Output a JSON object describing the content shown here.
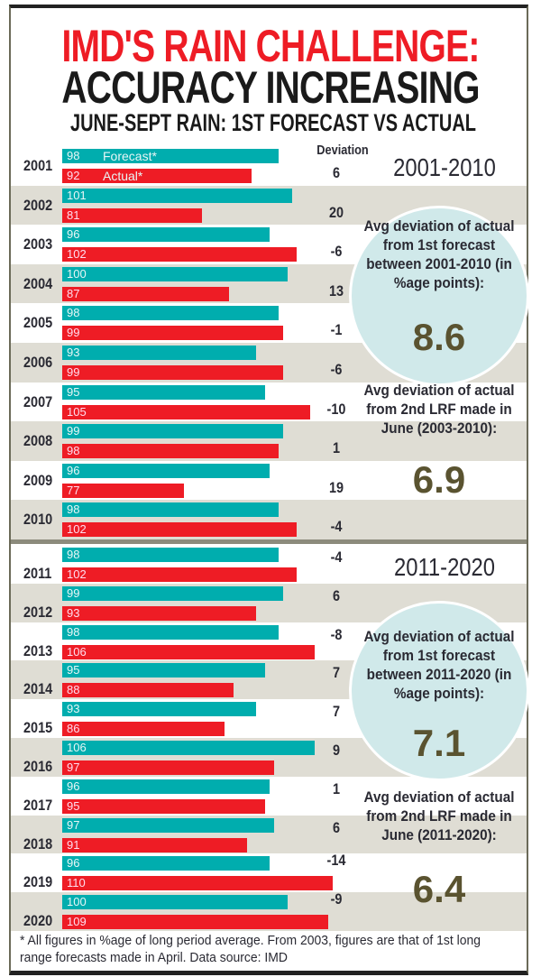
{
  "title_line1": "IMD'S RAIN CHALLENGE:",
  "title_line2": "ACCURACY INCREASING",
  "subtitle": "JUNE-SEPT RAIN: 1ST FORECAST VS ACTUAL",
  "deviation_header": "Deviation",
  "colors": {
    "forecast": "#00adae",
    "actual": "#ee1c25",
    "band": "#dfddd4",
    "circle": "#d0e9ea"
  },
  "chart_data": {
    "type": "bar",
    "orientation": "horizontal",
    "legend": [
      {
        "name": "Forecast*",
        "color": "#00adae"
      },
      {
        "name": "Actual*",
        "color": "#ee1c25"
      }
    ],
    "categories": [
      "2001",
      "2002",
      "2003",
      "2004",
      "2005",
      "2006",
      "2007",
      "2008",
      "2009",
      "2010",
      "2011",
      "2012",
      "2013",
      "2014",
      "2015",
      "2016",
      "2017",
      "2018",
      "2019",
      "2020"
    ],
    "series": [
      {
        "name": "Forecast*",
        "values": [
          98,
          101,
          96,
          100,
          98,
          93,
          95,
          99,
          96,
          98,
          98,
          99,
          98,
          95,
          93,
          106,
          96,
          97,
          96,
          100
        ]
      },
      {
        "name": "Actual*",
        "values": [
          92,
          81,
          102,
          87,
          99,
          99,
          105,
          98,
          77,
          102,
          102,
          93,
          106,
          88,
          86,
          97,
          95,
          91,
          110,
          109
        ]
      }
    ],
    "deviation": [
      "6",
      "20",
      "-6",
      "13",
      "-1",
      "-6",
      "-10",
      "1",
      "19",
      "-4",
      "-4",
      "6",
      "-8",
      "7",
      "7",
      "9",
      "1",
      "6",
      "-14",
      "-9"
    ]
  },
  "panels": [
    {
      "period": "2001-2010",
      "circle_text": "Avg deviation of actual from 1st forecast between 2001-2010 (in %age points):",
      "circle_value": "8.6",
      "second_text": "Avg deviation of actual from 2nd LRF made in June (2003-2010):",
      "second_value": "6.9"
    },
    {
      "period": "2011-2020",
      "circle_text": "Avg deviation of actual from 1st forecast between 2011-2020 (in %age points):",
      "circle_value": "7.1",
      "second_text": "Avg deviation of actual from 2nd LRF made in June (2011-2020):",
      "second_value": "6.4"
    }
  ],
  "footnote": "* All figures in %age of long period average. From 2003, figures are that of 1st long range forecasts made in April. Data source: IMD"
}
